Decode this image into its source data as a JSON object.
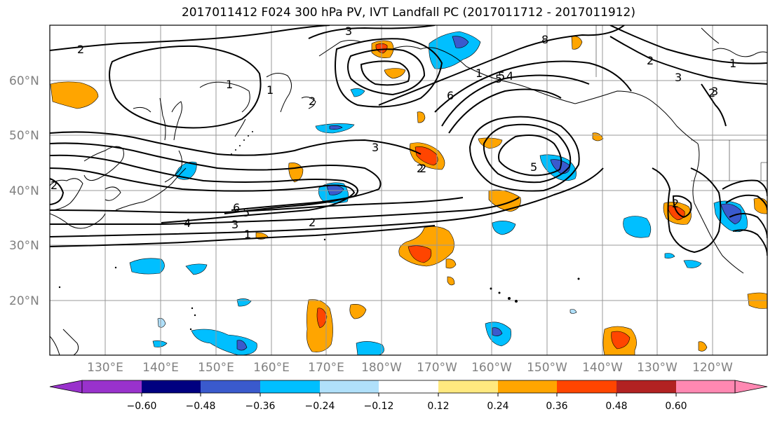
{
  "title": "2017011412 F024 300 hPa PV, IVT Landfall PC (2017011712 - 2017011912)",
  "lat_labels": [
    "60°N",
    "50°N",
    "40°N",
    "30°N",
    "20°N"
  ],
  "lon_labels": [
    "130°E",
    "140°E",
    "150°E",
    "160°E",
    "170°E",
    "180°W",
    "170°W",
    "160°W",
    "150°W",
    "140°W",
    "130°W",
    "120°W"
  ],
  "contour_labels": [
    "2",
    "3",
    "1",
    "1",
    "2",
    "3",
    "8",
    "1",
    "2",
    "5",
    "4",
    "6",
    "2",
    "1",
    "2",
    "3",
    "5",
    "6",
    "5",
    "4",
    "3",
    "1",
    "2",
    "2",
    "3",
    "5",
    "2",
    "2"
  ],
  "colorbar": {
    "ticks": [
      "−0.60",
      "−0.48",
      "−0.36",
      "−0.24",
      "−0.12",
      "0.12",
      "0.24",
      "0.36",
      "0.48",
      "0.60"
    ],
    "colors": [
      "#9932cc",
      "#000080",
      "#3a5acd",
      "#00bfff",
      "#b0e0fa",
      "#ffffff",
      "#ffe97f",
      "#ffa500",
      "#ff4500",
      "#b22222",
      "#ff88b2"
    ]
  },
  "colors": {
    "orange": "#ffa500",
    "red": "#ff4500",
    "yellow": "#ffe97f",
    "blue": "#00bfff",
    "darkblue": "#3a5acd",
    "lightblue": "#b0e0fa",
    "purple": "#9932cc"
  }
}
